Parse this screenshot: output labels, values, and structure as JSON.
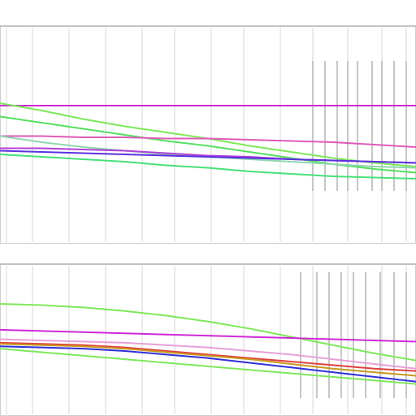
{
  "chart_data": [
    {
      "type": "line",
      "title": "",
      "xlabel": "",
      "ylabel": "",
      "grid": true,
      "legend": "none",
      "xlim": [
        0,
        100
      ],
      "ylim": [
        0,
        100
      ],
      "x": [
        0,
        10,
        20,
        30,
        40,
        50,
        60,
        70,
        80,
        90,
        100
      ],
      "series": [
        {
          "color": "#d028d8",
          "values": [
            70,
            70,
            70,
            70,
            70,
            70,
            70,
            70,
            70,
            70,
            70
          ]
        },
        {
          "color": "#7ee85a",
          "values": [
            72,
            66,
            59,
            53,
            48,
            43,
            37,
            32,
            27,
            23,
            20
          ]
        },
        {
          "color": "#55e060",
          "values": [
            61,
            56,
            51,
            46,
            41,
            37,
            32,
            27,
            22,
            18,
            15
          ]
        },
        {
          "color": "#e05ab8",
          "values": [
            45,
            45,
            44,
            44,
            43,
            43,
            42,
            41,
            40,
            38,
            36
          ]
        },
        {
          "color": "#8fd6b0",
          "values": [
            45,
            40,
            36,
            33,
            30,
            28,
            26,
            24,
            22,
            20,
            19
          ]
        },
        {
          "color": "#b040d8",
          "values": [
            35,
            35,
            34,
            33,
            31,
            29,
            28,
            26,
            25,
            24,
            23
          ]
        },
        {
          "color": "#5a30e0",
          "values": [
            33,
            32,
            31,
            30,
            29,
            28,
            27,
            26,
            25,
            24,
            23
          ]
        },
        {
          "color": "#48e078",
          "values": [
            30,
            28,
            26,
            24,
            21,
            19,
            16,
            14,
            12,
            11,
            10
          ]
        }
      ]
    },
    {
      "type": "line",
      "title": "",
      "xlabel": "",
      "ylabel": "",
      "grid": true,
      "legend": "none",
      "xlim": [
        0,
        100
      ],
      "ylim": [
        0,
        100
      ],
      "x": [
        0,
        10,
        20,
        30,
        40,
        50,
        60,
        70,
        80,
        90,
        100
      ],
      "series": [
        {
          "color": "#7ee85a",
          "values": [
            80,
            79,
            77,
            74,
            70,
            65,
            59,
            52,
            45,
            38,
            32
          ]
        },
        {
          "color": "#e8a0d8",
          "values": [
            50,
            49,
            48,
            47,
            45,
            43,
            40,
            37,
            33,
            29,
            25
          ]
        },
        {
          "color": "#e04040",
          "values": [
            47,
            46,
            45,
            43,
            40,
            37,
            34,
            31,
            28,
            25,
            23
          ]
        },
        {
          "color": "#c89820",
          "values": [
            46,
            45,
            44,
            42,
            39,
            36,
            33,
            29,
            25,
            22,
            19
          ]
        },
        {
          "color": "#3030d8",
          "values": [
            44,
            43,
            42,
            40,
            37,
            34,
            30,
            26,
            22,
            18,
            14
          ]
        },
        {
          "color": "#7ee85a",
          "values": [
            42,
            39,
            36,
            33,
            30,
            27,
            24,
            21,
            18,
            15,
            12
          ]
        },
        {
          "color": "#d028d8",
          "values": [
            58,
            57,
            56,
            55,
            54,
            53,
            52,
            51,
            50,
            49,
            48
          ]
        }
      ]
    }
  ]
}
